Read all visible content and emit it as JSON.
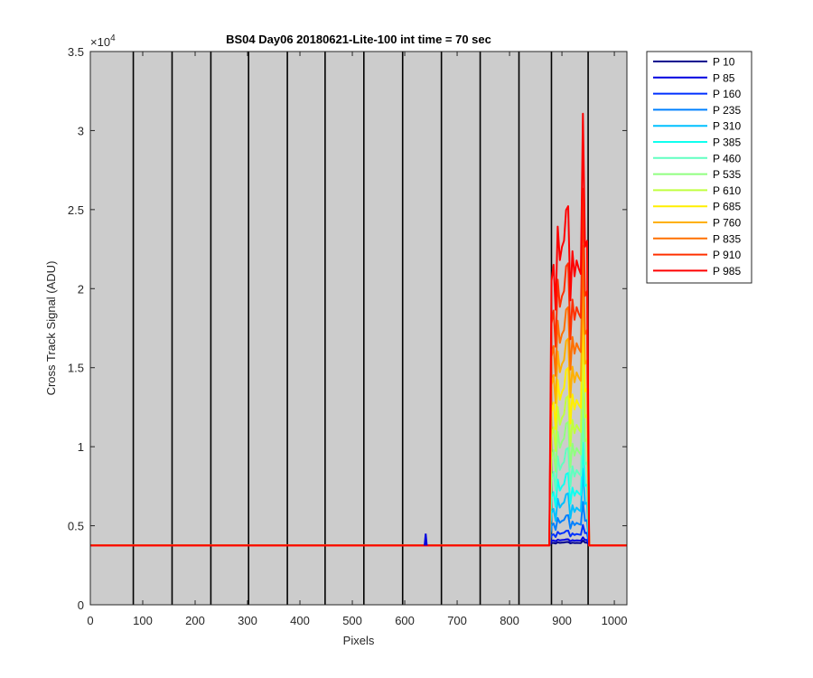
{
  "chart_data": {
    "type": "line",
    "title": "BS04 Day06 20180621-Lite-100 int time = 70 sec",
    "xlabel": "Pixels",
    "ylabel": "Cross Track Signal (ADU)",
    "y_exponent_label": "×10",
    "y_exponent": "4",
    "xlim": [
      0,
      1024
    ],
    "ylim": [
      0,
      35000
    ],
    "xticks": [
      0,
      100,
      200,
      300,
      400,
      500,
      600,
      700,
      800,
      900,
      1000
    ],
    "yticks": [
      {
        "value": 0,
        "label": "0"
      },
      {
        "value": 5000,
        "label": "0.5"
      },
      {
        "value": 10000,
        "label": "1"
      },
      {
        "value": 15000,
        "label": "1.5"
      },
      {
        "value": 20000,
        "label": "2"
      },
      {
        "value": 25000,
        "label": "2.5"
      },
      {
        "value": 30000,
        "label": "3"
      },
      {
        "value": 35000,
        "label": "3.5"
      }
    ],
    "plot_background": "#cccccc",
    "vertical_lines_x": [
      82,
      156,
      230,
      302,
      376,
      448,
      522,
      596,
      670,
      744,
      818,
      880,
      950
    ],
    "baseline": 3750,
    "active_region_x": [
      880,
      950
    ],
    "grid": false,
    "legend_position": "outside-right",
    "series": [
      {
        "name": "P 10",
        "color": "#00008f",
        "plateau": 3900,
        "peak": 4050
      },
      {
        "name": "P 85",
        "color": "#0000df",
        "plateau": 4050,
        "peak": 4250
      },
      {
        "name": "P 160",
        "color": "#0030ff",
        "plateau": 4400,
        "peak": 5000
      },
      {
        "name": "P 235",
        "color": "#0080ff",
        "plateau": 5000,
        "peak": 6400
      },
      {
        "name": "P 310",
        "color": "#00c0ff",
        "plateau": 5800,
        "peak": 8400
      },
      {
        "name": "P 385",
        "color": "#10ffef",
        "plateau": 6800,
        "peak": 10000
      },
      {
        "name": "P 460",
        "color": "#60ffc0",
        "plateau": 8000,
        "peak": 12000
      },
      {
        "name": "P 535",
        "color": "#90ff80",
        "plateau": 9300,
        "peak": 14000
      },
      {
        "name": "P 610",
        "color": "#c0ff40",
        "plateau": 10700,
        "peak": 15900
      },
      {
        "name": "P 685",
        "color": "#ffef00",
        "plateau": 12200,
        "peak": 18000
      },
      {
        "name": "P 760",
        "color": "#ffb000",
        "plateau": 13900,
        "peak": 20000
      },
      {
        "name": "P 835",
        "color": "#ff7000",
        "plateau": 15700,
        "peak": 22200
      },
      {
        "name": "P 910",
        "color": "#ff3000",
        "plateau": 17800,
        "peak": 25700
      },
      {
        "name": "P 985",
        "color": "#ff0000",
        "plateau": 20500,
        "peak": 30300
      }
    ],
    "annotations": [
      {
        "note": "blue spike",
        "x": 640,
        "y": 4500
      }
    ]
  }
}
